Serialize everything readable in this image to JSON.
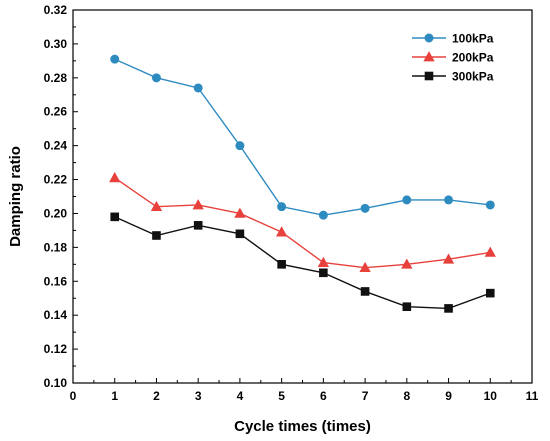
{
  "chart_data": {
    "type": "line",
    "title": "",
    "xlabel": "Cycle times (times)",
    "ylabel": "Damping ratio",
    "xlim": [
      0,
      11
    ],
    "ylim": [
      0.1,
      0.32
    ],
    "x_ticks": [
      0,
      1,
      2,
      3,
      4,
      5,
      6,
      7,
      8,
      9,
      10,
      11
    ],
    "x_tick_labels": [
      "0",
      "1",
      "2",
      "3",
      "4",
      "5",
      "6",
      "7",
      "8",
      "9",
      "10",
      "11"
    ],
    "y_ticks": [
      0.1,
      0.12,
      0.14,
      0.16,
      0.18,
      0.2,
      0.22,
      0.24,
      0.26,
      0.28,
      0.3,
      0.32
    ],
    "y_tick_labels": [
      "0.10",
      "0.12",
      "0.14",
      "0.16",
      "0.18",
      "0.20",
      "0.22",
      "0.24",
      "0.26",
      "0.28",
      "0.30",
      "0.32"
    ],
    "x": [
      1,
      2,
      3,
      4,
      5,
      6,
      7,
      8,
      9,
      10
    ],
    "grid": false,
    "legend_position": "top-right",
    "series": [
      {
        "name": "100kPa",
        "values": [
          0.291,
          0.28,
          0.274,
          0.24,
          0.204,
          0.199,
          0.203,
          0.208,
          0.208,
          0.205
        ],
        "color": "#2E8BC0",
        "marker": "circle"
      },
      {
        "name": "200kPa",
        "values": [
          0.221,
          0.204,
          0.205,
          0.2,
          0.189,
          0.171,
          0.168,
          0.17,
          0.173,
          0.177
        ],
        "color": "#E8413C",
        "marker": "triangle"
      },
      {
        "name": "300kPa",
        "values": [
          0.198,
          0.187,
          0.193,
          0.188,
          0.17,
          0.165,
          0.154,
          0.145,
          0.144,
          0.153
        ],
        "color": "#111111",
        "marker": "square"
      }
    ]
  }
}
